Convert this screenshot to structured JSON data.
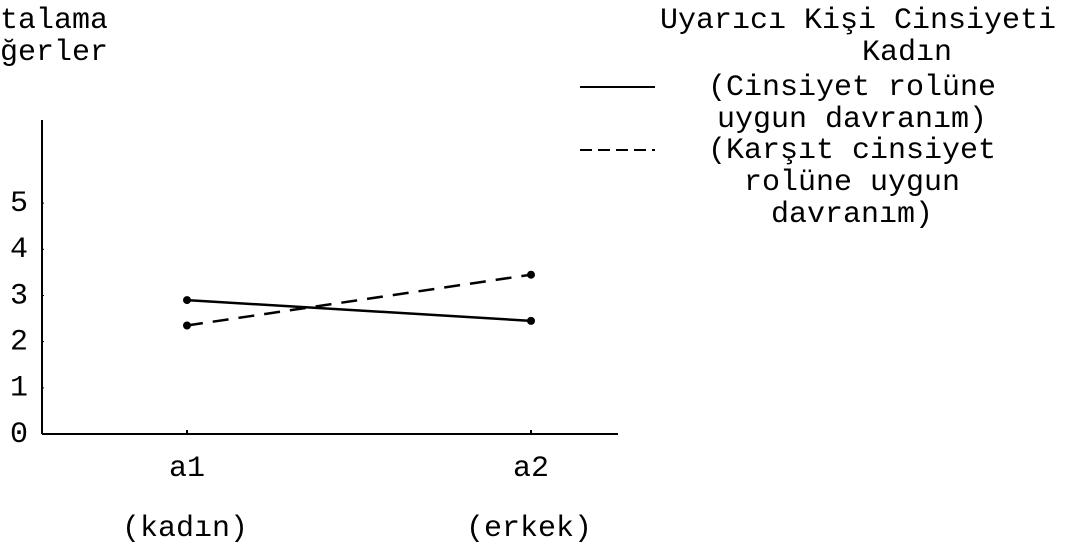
{
  "chart_data": {
    "type": "line",
    "y_label": [
      "talama",
      "ğerler"
    ],
    "legend_title": [
      "Uyarıcı Kişi Cinsiyeti",
      "Kadın"
    ],
    "categories": [
      "a1",
      "a2"
    ],
    "category_sublabels": [
      "(kadın)",
      "(erkek)"
    ],
    "series": [
      {
        "name": "(Cinsiyet rolüne uygun davranım)",
        "color": "#000000",
        "dash": "solid",
        "values": [
          2.9,
          2.45
        ]
      },
      {
        "name": "(Karşıt cinsiyet rolüne uygun davranım)",
        "color": "#000000",
        "dash": "dashed",
        "values": [
          2.35,
          3.45
        ]
      }
    ],
    "ylim": [
      0,
      6.8
    ],
    "yticks": [
      0,
      1,
      2,
      3,
      4,
      5
    ],
    "grid": false
  }
}
